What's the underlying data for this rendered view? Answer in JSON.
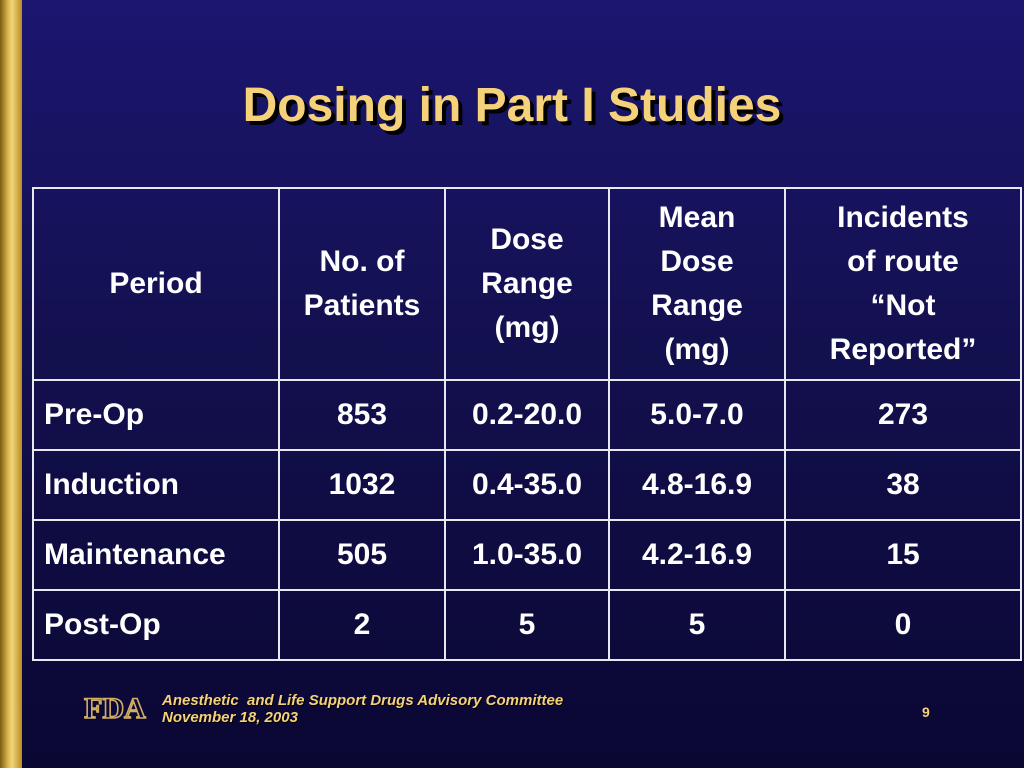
{
  "slide": {
    "title": "Dosing in Part I Studies",
    "page_number": "9"
  },
  "table": {
    "headers": [
      [
        "Period"
      ],
      [
        "No. of",
        "Patients"
      ],
      [
        "Dose",
        "Range",
        "(mg)"
      ],
      [
        "Mean",
        "Dose",
        "Range",
        "(mg)"
      ],
      [
        "Incidents",
        "of route",
        "“Not",
        "Reported”"
      ]
    ],
    "rows": [
      [
        "Pre-Op",
        "853",
        "0.2-20.0",
        "5.0-7.0",
        "273"
      ],
      [
        "Induction",
        "1032",
        "0.4-35.0",
        "4.8-16.9",
        "38"
      ],
      [
        "Maintenance",
        "505",
        "1.0-35.0",
        "4.2-16.9",
        "15"
      ],
      [
        "Post-Op",
        "2",
        "5",
        "5",
        "0"
      ]
    ]
  },
  "footer": {
    "logo_text": "FDA",
    "committee": "Anesthetic  and Life Support Drugs Advisory Committee",
    "date": "November 18, 2003"
  },
  "colors": {
    "background": "#15115a",
    "title": "#f5d27a",
    "accent_bar": "#d9b44a",
    "table_text": "#ffffff",
    "table_border": "#e8e8f0"
  }
}
